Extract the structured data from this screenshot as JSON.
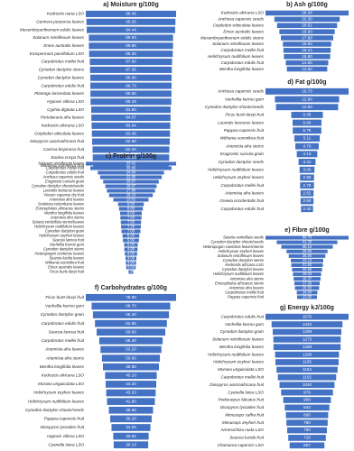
{
  "chart_data": [
    {
      "type": "funnel",
      "title": "a) Moisture g/100g",
      "color": "#4472c4",
      "categories": [
        "Kedrostis nana LSO",
        "Gunnera perpensa leaves",
        "Mesembryanthemum edulis leaves",
        "Solanum retroflexum leaves",
        "Emex australis leaves",
        "Erospermum parvifolium LSO",
        "Carpobrotus mellei fruit",
        "Cynodon dactylon stems",
        "Cynodon dactylon leaves",
        "Carpobrotus edulis fruit",
        "Plantago lanceolata leaves",
        "Hypoxis villosa LSO",
        "Cyphia digitata LSO",
        "Portulacaria afra leaves",
        "Kedrostis africana LSO",
        "Cotyledon obiculata leaves",
        "Diospyros austroafricana fruit",
        "Carissa bispinosa fruit",
        "Euclea crispa fruit",
        "Withania somnifera fruit"
      ],
      "values": [
        96.46,
        95.05,
        94.44,
        89.93,
        89.86,
        89.3,
        87.9,
        87.35,
        86.8,
        86.73,
        86.6,
        86.29,
        84.8,
        84.57,
        83.94,
        83.48,
        82.9,
        82,
        81.6,
        80.73
      ],
      "value_labels": [
        "96.46",
        "95.05",
        "94.44",
        "89.93",
        "89.86",
        "89.30",
        "87.90",
        "87.35",
        "86.80",
        "86.73",
        "86.60",
        "86.29",
        "84.80",
        "84.57",
        "83.94",
        "83.48",
        "82.90",
        "82.00",
        "81.60",
        "80.73"
      ]
    },
    {
      "type": "funnel",
      "title": "b) Ash g/100g",
      "color": "#4472c4",
      "categories": [
        "Kedrostis africana LSO",
        "Anchusa capensis seeds",
        "Cotyledon orbiculata leaves",
        "Emex australis leaves",
        "Mesembryanthemum edulis stems",
        "Solanum retroflexum leaves",
        "Carpobrotus mellei fruit",
        "Helichrysum nudifolium leaves",
        "Carpobrotus edulis fruit",
        "Mentha longifolia leaves"
      ],
      "values": [
        28.38,
        22.3,
        20.51,
        18.9,
        17.88,
        16.5,
        16.14,
        15.8,
        14.5,
        13.8
      ],
      "value_labels": [
        "28.38",
        "22.30",
        "20.51",
        "18.90",
        "17.88",
        "16.50",
        "16.14",
        "15.80",
        "14.50",
        "13.80"
      ]
    },
    {
      "type": "funnel",
      "title": "c) Protein g/100g",
      "color": "#4472c4",
      "categories": [
        "Solanum retroflexum leaves",
        "Carpobrotus mellei fruit",
        "Carpobrotus edulis fruit",
        "Anchusa capensis seeds",
        "Eragrostis curvula grain",
        "Cynodon dactylon shoots/seeds",
        "Leonotis leonurus leaves",
        "Viscum capense dry fruit",
        "Artemisia afra leaves",
        "Scabiosa columbaria leaves",
        "Eriocephalus africanus stems",
        "Mentha longifolia leaves",
        "Artemisia afra stems",
        "Setaria verticillata stems/leaves",
        "Helichrysum nudifolium leaves",
        "Cynodon dactylon grain",
        "Helichrysum zeyheri leaves",
        "Searsia lancea fruit",
        "Vachellia karroo gum",
        "Cynodon dactylon stems",
        "Heteropogon contortus leaves",
        "Searsia lucida leaves",
        "Withania somnifera fruit",
        "Emex australis leaves",
        "Ficus burtt-davyi fruit"
      ],
      "values": [
        33.41,
        30.06,
        24.5,
        22.8,
        20.57,
        18.97,
        17.8,
        16.16,
        13.01,
        9.5,
        8.8,
        8,
        7.8,
        7.5,
        7.3,
        7,
        6.2,
        5.9,
        5,
        4.9,
        4.5,
        4,
        3.8,
        3.5,
        1.9
      ],
      "value_labels": [
        "33.41",
        "30.06",
        "24.50",
        "22.80",
        "20.57",
        "18.97",
        "17.80",
        "16.16",
        "13.01",
        "9.50",
        "8.80",
        "8.00",
        "7.80",
        "7.50",
        "7.30",
        "7.00",
        "6.20",
        "5.90",
        "5.00",
        "4.90",
        "4.50",
        "4.00",
        "3.80",
        "3.50",
        "1.90"
      ]
    },
    {
      "type": "funnel",
      "title": "d) Fat g/100g",
      "color": "#4472c4",
      "categories": [
        "Anchusa capensis seeds",
        "Vachellia karroo gum",
        "Cynodon dactylon shoots/seeds",
        "Ficus burtt-davyi fruit",
        "Leonotis leonurus leaves",
        "Pappea capensis fruit",
        "Withania somnifera fruit",
        "Artemisia afra stems",
        "Eragrostis curvula grain",
        "Cynodon dactylon seeds",
        "Helichrysum nudifolium leaves",
        "Helichrysum zeyheri leaves",
        "Carpobrotus mellei fruit",
        "Artemisia afra leaves",
        "Grewia occidentalis fruit",
        "Carpobrotus edulis fruit"
      ],
      "values": [
        16.7,
        12.9,
        12.5,
        6.35,
        5.8,
        5.75,
        5.11,
        4.7,
        4.13,
        3.41,
        3,
        2.8,
        2.78,
        2.62,
        2.6,
        2.4
      ],
      "value_labels": [
        "16.70",
        "12.90",
        "12.50",
        "6.35",
        "5.80",
        "5.75",
        "5.11",
        "4.70",
        "4.13",
        "3.41",
        "3.00",
        "2.80",
        "2.78",
        "2.62",
        "2.60",
        "2.40"
      ]
    },
    {
      "type": "funnel",
      "title": "e) Fibre g/100g",
      "color": "#4472c4",
      "categories": [
        "Setaria verticillata seeds",
        "Cynodon dactylon shoots/seeds",
        "Heteropogon contortus leaves/stems",
        "Helichrysum zeyheri leaves",
        "Solanum retroflexum leaves",
        "Cynodon dactylon stems",
        "Kedrostis africana LSO",
        "Cynodon dactylon leaves",
        "Helichrysum nudifolium leaves",
        "Artemisia afra stems",
        "Eriocephalus africanus stems",
        "Artemisia afra leaves",
        "Carpobrotus mellei fruit",
        "Pappea capensis fruit"
      ],
      "values": [
        56.7,
        41.35,
        35.1,
        28,
        25,
        22.12,
        21.52,
        20.5,
        19.24,
        18.37,
        17.3,
        16.5,
        14.03,
        13.5
      ],
      "value_labels": [
        "56.70",
        "41.35",
        "35.10",
        "28.00",
        "25.00",
        "22.12",
        "21.52",
        "20.50",
        "19.24",
        "18.37",
        "17.30",
        "16.50",
        "14.03",
        "13.50"
      ]
    },
    {
      "type": "funnel",
      "title": "f) Carbohydrates g/100g",
      "color": "#4472c4",
      "categories": [
        "Ficus burtt-davyi fruit",
        "Vachellia karroo gum",
        "Cynodon dactylon grain",
        "Carpobrotus edulis fruit",
        "Searsia lancea fruit",
        "Carpobrotus mellei fruit",
        "Artemisia afra leaves",
        "Artemisia afra stems",
        "Mentha longifolia leaves",
        "Kedrostis africana LSO",
        "Moraea unguiculata LSO",
        "Helichrysum zeyheri leaves",
        "Helichrysum nudifolium leaves",
        "Cynodon dactylon shoots/seeds",
        "Pappea capensis fruit",
        "Diospyros lycioides fruit",
        "Hypoxis villosa LSO",
        "Cyanella lutea LSO"
      ],
      "values": [
        78.9,
        68.7,
        66.4,
        62.85,
        60,
        55.4,
        53.2,
        50.6,
        48.9,
        45.1,
        44.2,
        43.2,
        41.8,
        38.6,
        36.2,
        34,
        30.92,
        30.13
      ],
      "value_labels": [
        "78.90",
        "68.70",
        "66.40",
        "62.85",
        "60.00",
        "55.40",
        "53.20",
        "50.60",
        "48.90",
        "45.10",
        "44.20",
        "43.20",
        "41.80",
        "38.60",
        "36.20",
        "34.00",
        "30.92",
        "30.13"
      ]
    },
    {
      "type": "funnel",
      "title": "g) Energy kJ/100g",
      "color": "#4472c4",
      "categories": [
        "Carpobrotus edulis fruit",
        "Vachellia karroo gum",
        "Cynodon dactylon grain",
        "Solanum retroflexum leaves",
        "Mentha longifolia leaves",
        "Helichrysum nudifolium leaves",
        "Helichrysum zeyheri leaves",
        "Moraea unguiculata LSO",
        "Carpobrotus mellei fruit",
        "Diospyros austroafricana fruit",
        "Cyanella lutea LSO",
        "Podocarpus falcatus fruit",
        "Diospyros lycioides fruit",
        "Mimusops caffra fruit",
        "Mimusops zeyheri fruit",
        "Annesorhiza nuda LSO",
        "Searsia lucida fruit",
        "Chamarea capensis LSO"
      ],
      "values": [
        1570,
        1340,
        1298,
        1273,
        1268,
        1208,
        1195,
        1154,
        1102,
        1040,
        979,
        900,
        843,
        800,
        780,
        750,
        710,
        657
      ]
    }
  ]
}
